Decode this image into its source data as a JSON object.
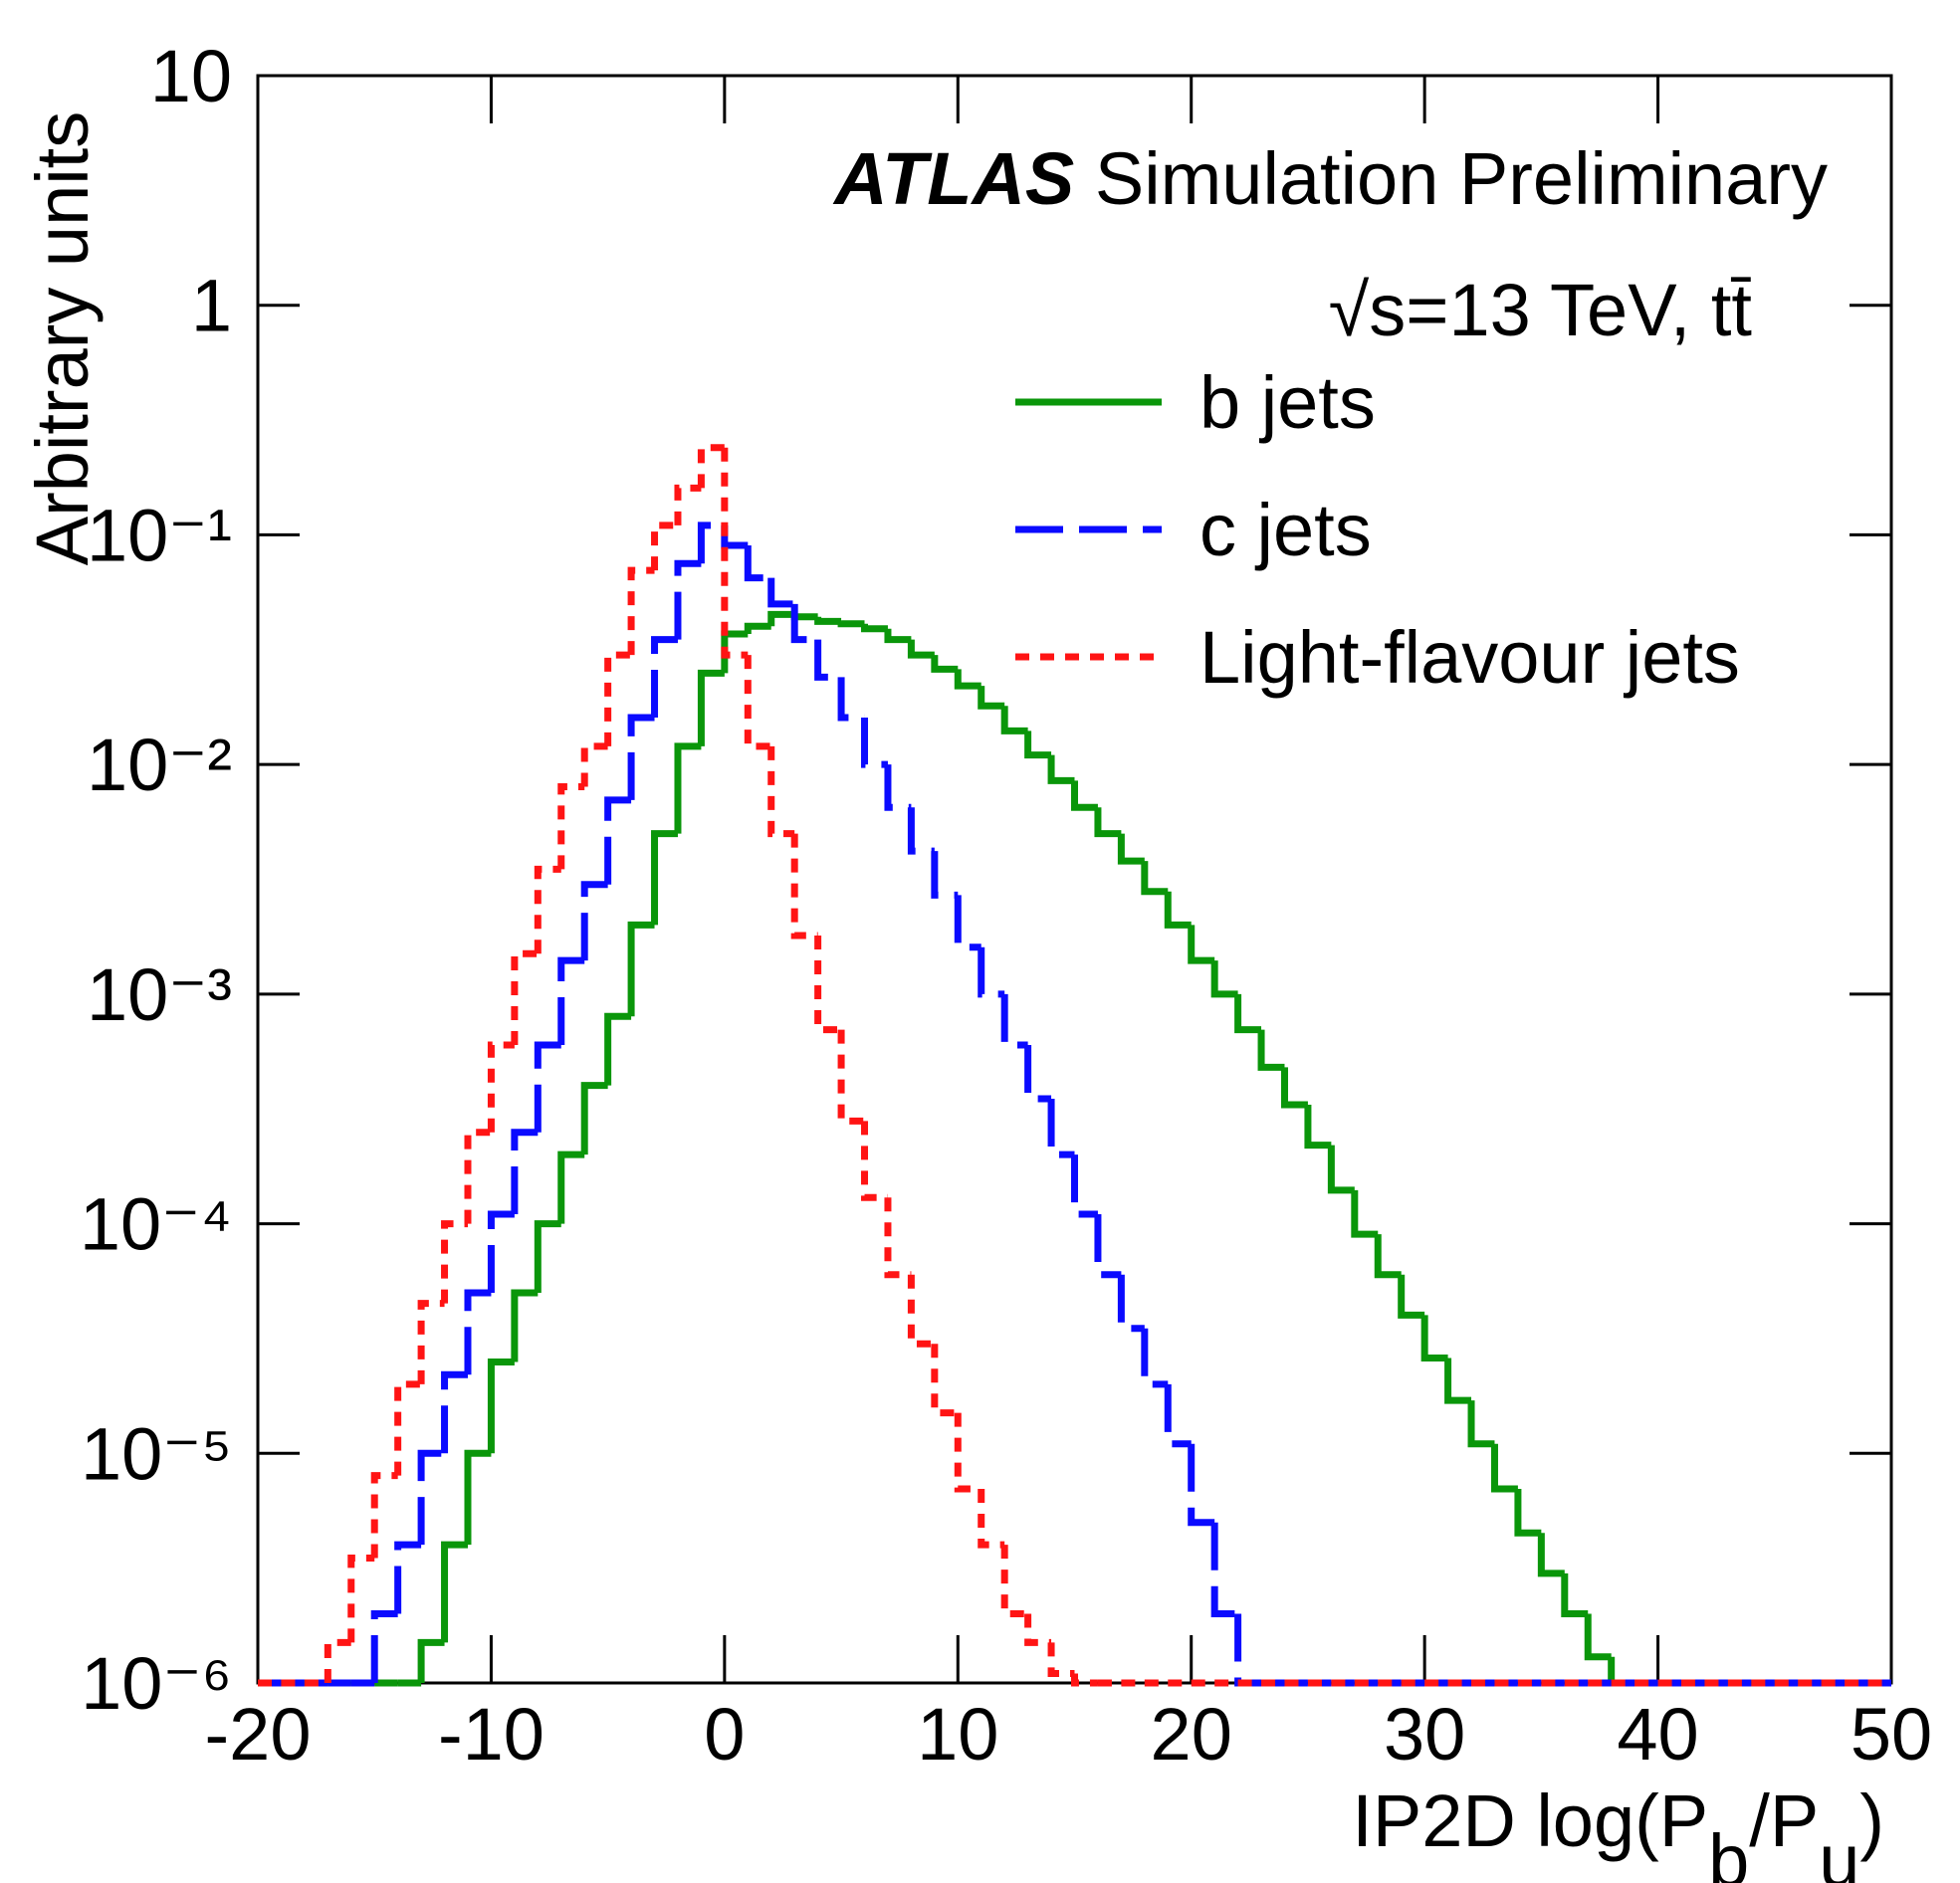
{
  "chart_data": {
    "type": "histogram",
    "title": [
      "ATLAS",
      "Simulation Preliminary"
    ],
    "subtitle": "√s=13 TeV, tt̄",
    "y_label": "Arbitrary units",
    "x_label": [
      "IP2D log(P",
      "b",
      "/P",
      "u",
      ")"
    ],
    "log_y": true,
    "legend": "upper right",
    "xlim": [
      -20,
      50
    ],
    "ylim": [
      1e-06,
      10
    ],
    "xticks": [
      -20,
      -10,
      0,
      10,
      20,
      30,
      40,
      50
    ],
    "yticks": [
      {
        "value": 1e-06,
        "label": "10⁻⁶"
      },
      {
        "value": 1e-05,
        "label": "10⁻⁵"
      },
      {
        "value": 0.0001,
        "label": "10⁻⁴"
      },
      {
        "value": 0.001,
        "label": "10⁻³"
      },
      {
        "value": 0.01,
        "label": "10⁻²"
      },
      {
        "value": 0.1,
        "label": "10⁻¹"
      },
      1,
      10
    ],
    "bins": [
      -20,
      -19,
      -18,
      -17,
      -16,
      -15,
      -14,
      -13,
      -12,
      -11,
      -10,
      -9,
      -8,
      -7,
      -6,
      -5,
      -4,
      -3,
      -2,
      -1,
      0,
      1,
      2,
      3,
      4,
      5,
      6,
      7,
      8,
      9,
      10,
      11,
      12,
      13,
      14,
      15,
      16,
      17,
      18,
      19,
      20,
      21,
      22,
      23,
      24,
      25,
      26,
      27,
      28,
      29,
      30,
      31,
      32,
      33,
      34,
      35,
      36,
      37,
      38,
      39,
      40,
      41,
      42,
      43,
      44,
      45,
      46,
      47,
      48,
      49,
      50
    ],
    "series": [
      {
        "name": "b jets",
        "color": "#0a960a",
        "dash": "solid",
        "values": [
          0,
          0,
          0,
          0,
          0,
          0,
          0,
          1.5e-06,
          4e-06,
          1e-05,
          2.5e-05,
          5e-05,
          0.0001,
          0.0002,
          0.0004,
          0.0008,
          0.002,
          0.005,
          0.012,
          0.025,
          0.037,
          0.04,
          0.045,
          0.044,
          0.042,
          0.041,
          0.039,
          0.035,
          0.03,
          0.026,
          0.022,
          0.018,
          0.014,
          0.011,
          0.0085,
          0.0065,
          0.005,
          0.0038,
          0.0028,
          0.002,
          0.0014,
          0.001,
          0.0007,
          0.00048,
          0.00033,
          0.00022,
          0.00014,
          9e-05,
          6e-05,
          4e-05,
          2.6e-05,
          1.7e-05,
          1.1e-05,
          7e-06,
          4.5e-06,
          3e-06,
          2e-06,
          1.3e-06,
          0,
          0,
          0,
          0,
          0,
          0,
          0,
          0,
          0,
          0,
          0,
          0
        ]
      },
      {
        "name": "c jets",
        "color": "#0a0aff",
        "dash": "long",
        "values": [
          0,
          0,
          0,
          0,
          0,
          2e-06,
          4e-06,
          1e-05,
          2.2e-05,
          5e-05,
          0.00011,
          0.00025,
          0.0006,
          0.0014,
          0.003,
          0.007,
          0.016,
          0.035,
          0.075,
          0.11,
          0.09,
          0.065,
          0.05,
          0.035,
          0.024,
          0.016,
          0.01,
          0.0065,
          0.0042,
          0.0027,
          0.0016,
          0.001,
          0.0006,
          0.00035,
          0.0002,
          0.00011,
          6e-05,
          3.5e-05,
          2e-05,
          1.1e-05,
          5e-06,
          2e-06,
          0,
          0,
          0,
          0,
          0,
          0,
          0,
          0,
          0,
          0,
          0,
          0,
          0,
          0,
          0,
          0,
          0,
          0,
          0,
          0,
          0,
          0,
          0,
          0,
          0,
          0,
          0,
          0
        ]
      },
      {
        "name": "Light-flavour jets",
        "color": "#ff1414",
        "dash": "short",
        "values": [
          0,
          0,
          0,
          1.5e-06,
          3.5e-06,
          8e-06,
          2e-05,
          4.5e-05,
          0.0001,
          0.00025,
          0.0006,
          0.0015,
          0.0035,
          0.008,
          0.012,
          0.03,
          0.07,
          0.11,
          0.16,
          0.24,
          0.03,
          0.012,
          0.005,
          0.0018,
          0.0007,
          0.00028,
          0.00013,
          6e-05,
          3e-05,
          1.5e-05,
          7e-06,
          4e-06,
          2e-06,
          1.5e-06,
          1.1e-06,
          0,
          0,
          0,
          0,
          0,
          0,
          0,
          0,
          0,
          0,
          0,
          0,
          0,
          0,
          0,
          0,
          0,
          0,
          0,
          0,
          0,
          0,
          0,
          0,
          0,
          0,
          0,
          0,
          0,
          0,
          0,
          0,
          0,
          0,
          0
        ]
      }
    ]
  }
}
